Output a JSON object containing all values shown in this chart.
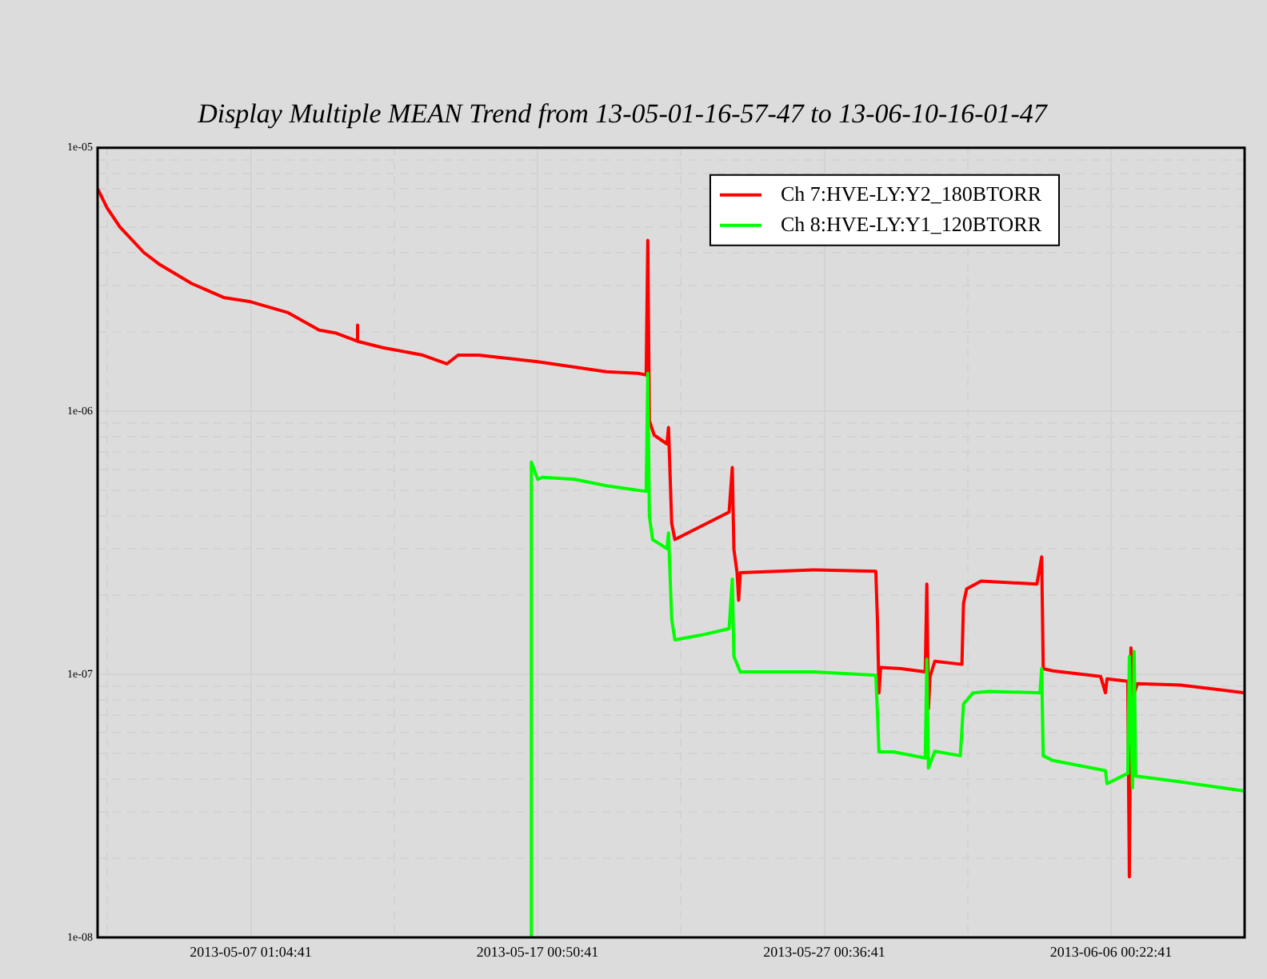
{
  "chart_data": {
    "type": "line",
    "title": "Display Multiple MEAN Trend from 13-05-01-16-57-47 to 13-06-10-16-01-47",
    "series": [
      {
        "name": "Ch 7:HVE-LY:Y2_180BTORR",
        "color": "#ff0000",
        "x": [
          "2013-05-01T16:58",
          "2013-05-02T01:00",
          "2013-05-02T11:40",
          "2013-05-03T07:40",
          "2013-05-03T21:00",
          "2013-05-04T23:40",
          "2013-05-06T02:20",
          "2013-05-07T01:00",
          "2013-05-08T07:40",
          "2013-05-09T10:20",
          "2013-05-09T23:40",
          "2013-05-10T18:20",
          "2013-05-10T18:20",
          "2013-05-10T18:20",
          "2013-05-11T15:40",
          "2013-05-13T01:00",
          "2013-05-13T21:00",
          "2013-05-14T06:20",
          "2013-05-14T23:40",
          "2013-05-17T01:00",
          "2013-05-19T10:20",
          "2013-05-20T13:00",
          "2013-05-20T19:40",
          "2013-05-20T21:00",
          "2013-05-20T22:20",
          "2013-05-21T02:20",
          "2013-05-21T13:00",
          "2013-05-21T14:20",
          "2013-05-21T17:00",
          "2013-05-21T19:40",
          "2013-05-23T17:00",
          "2013-05-23T19:40",
          "2013-05-23T21:00",
          "2013-05-23T23:40",
          "2013-05-24T01:00",
          "2013-05-24T02:20",
          "2013-05-26T15:40",
          "2013-05-28T19:40",
          "2013-05-28T21:00",
          "2013-05-28T22:20",
          "2013-05-28T23:40",
          "2013-05-29T17:00",
          "2013-05-30T13:00",
          "2013-05-30T14:20",
          "2013-05-30T15:40",
          "2013-05-30T17:00",
          "2013-05-30T21:00",
          "2013-05-31T19:40",
          "2013-05-31T21:00",
          "2013-05-31T23:40",
          "2013-06-01T11:40",
          "2013-06-03T10:20",
          "2013-06-03T14:20",
          "2013-06-03T15:40",
          "2013-06-03T23:40",
          "2013-06-05T15:40",
          "2013-06-05T19:40",
          "2013-06-05T21:00",
          "2013-06-06T14:20",
          "2013-06-06T15:40",
          "2013-06-06T17:00",
          "2013-06-06T18:20",
          "2013-06-06T22:20",
          "2013-06-08T10:20",
          "2013-06-10T16:00"
        ],
        "values": [
          7e-06,
          5.9e-06,
          5e-06,
          4e-06,
          3.6e-06,
          3.05e-06,
          2.7e-06,
          2.6e-06,
          2.37e-06,
          2.03e-06,
          1.98e-06,
          1.84e-06,
          2.12e-06,
          1.84e-06,
          1.74e-06,
          1.63e-06,
          1.51e-06,
          1.63e-06,
          1.63e-06,
          1.54e-06,
          1.41e-06,
          1.39e-06,
          1.37e-06,
          4.45e-06,
          9.2e-07,
          8.1e-07,
          7.5e-07,
          8.65e-07,
          3.74e-07,
          3.25e-07,
          4.13e-07,
          6.1e-07,
          2.99e-07,
          2.43e-07,
          1.91e-07,
          2.43e-07,
          2.49e-07,
          2.46e-07,
          1.62e-07,
          8.5e-08,
          1.06e-07,
          1.05e-07,
          1.02e-07,
          2.2e-07,
          7.4e-08,
          9.8e-08,
          1.12e-07,
          1.09e-07,
          1.86e-07,
          2.11e-07,
          2.26e-07,
          2.2e-07,
          2.79e-07,
          1.05e-07,
          1.03e-07,
          9.8e-08,
          8.5e-08,
          9.6e-08,
          9.4e-08,
          1.7e-08,
          1.26e-07,
          8.1e-08,
          9.2e-08,
          9.1e-08,
          8.5e-08
        ]
      },
      {
        "name": "Ch 8:HVE-LY:Y1_120BTORR",
        "color": "#00ff00",
        "x": [
          "2013-05-16T19:40",
          "2013-05-16T19:40",
          "2013-05-17T01:00",
          "2013-05-17T05:00",
          "2013-05-18T07:40",
          "2013-05-19T10:20",
          "2013-05-20T19:40",
          "2013-05-20T21:00",
          "2013-05-20T22:20",
          "2013-05-21T01:00",
          "2013-05-21T13:00",
          "2013-05-21T14:20",
          "2013-05-21T17:00",
          "2013-05-21T19:40",
          "2013-05-22T18:20",
          "2013-05-23T17:00",
          "2013-05-23T19:40",
          "2013-05-23T21:00",
          "2013-05-24T02:20",
          "2013-05-26T15:40",
          "2013-05-28T19:40",
          "2013-05-28T21:00",
          "2013-05-28T22:20",
          "2013-05-29T10:20",
          "2013-05-30T13:00",
          "2013-05-30T14:20",
          "2013-05-30T15:40",
          "2013-05-30T21:00",
          "2013-05-31T18:20",
          "2013-05-31T21:00",
          "2013-06-01T05:00",
          "2013-06-01T18:20",
          "2013-06-03T13:00",
          "2013-06-03T14:20",
          "2013-06-03T15:40",
          "2013-06-03T23:40",
          "2013-06-05T19:40",
          "2013-06-05T21:00",
          "2013-06-06T14:20",
          "2013-06-06T15:40",
          "2013-06-06T18:20",
          "2013-06-06T19:40",
          "2013-06-06T21:00",
          "2013-06-08T10:20",
          "2013-06-10T16:00"
        ],
        "values": [
          1e-08,
          6.4e-07,
          5.5e-07,
          5.6e-07,
          5.5e-07,
          5.2e-07,
          4.95e-07,
          1.39e-06,
          4e-07,
          3.25e-07,
          3e-07,
          3.44e-07,
          1.62e-07,
          1.35e-07,
          1.41e-07,
          1.49e-07,
          2.3e-07,
          1.17e-07,
          1.02e-07,
          1.02e-07,
          9.9e-08,
          7.2e-08,
          5.07e-08,
          5.07e-08,
          4.8e-08,
          1.14e-07,
          4.4e-08,
          5.1e-08,
          4.9e-08,
          7.7e-08,
          8.5e-08,
          8.6e-08,
          8.5e-08,
          1.05e-07,
          4.9e-08,
          4.7e-08,
          4.3e-08,
          3.84e-08,
          4.2e-08,
          1.17e-07,
          3.7e-08,
          1.22e-07,
          4.1e-08,
          3.9e-08,
          3.6e-08
        ]
      }
    ],
    "xlim": [
      "2013-05-01T16:57:47",
      "2013-06-10T16:01:47"
    ],
    "xticks": [
      {
        "value": "2013-05-02T01:11:41",
        "label": null
      },
      {
        "value": "2013-05-07T01:04:41",
        "label": "2013-05-07 01:04:41"
      },
      {
        "value": "2013-05-12T00:57:41",
        "label": null
      },
      {
        "value": "2013-05-17T00:50:41",
        "label": "2013-05-17 00:50:41"
      },
      {
        "value": "2013-05-22T00:43:41",
        "label": null
      },
      {
        "value": "2013-05-27T00:36:41",
        "label": "2013-05-27 00:36:41"
      },
      {
        "value": "2013-06-01T00:29:41",
        "label": null
      },
      {
        "value": "2013-06-06T00:22:41",
        "label": "2013-06-06 00:22:41"
      }
    ],
    "log": "y",
    "ylim": [
      1e-08,
      1e-05
    ],
    "yticks": [
      {
        "value": 1e-08,
        "label": "1e-08"
      },
      {
        "value": 2e-08,
        "label": null
      },
      {
        "value": 3e-08,
        "label": null
      },
      {
        "value": 4e-08,
        "label": null
      },
      {
        "value": 5e-08,
        "label": null
      },
      {
        "value": 6e-08,
        "label": null
      },
      {
        "value": 7e-08,
        "label": null
      },
      {
        "value": 8e-08,
        "label": null
      },
      {
        "value": 9e-08,
        "label": null
      },
      {
        "value": 1e-07,
        "label": "1e-07"
      },
      {
        "value": 2e-07,
        "label": null
      },
      {
        "value": 3e-07,
        "label": null
      },
      {
        "value": 4e-07,
        "label": null
      },
      {
        "value": 5e-07,
        "label": null
      },
      {
        "value": 6e-07,
        "label": null
      },
      {
        "value": 7e-07,
        "label": null
      },
      {
        "value": 8e-07,
        "label": null
      },
      {
        "value": 9e-07,
        "label": null
      },
      {
        "value": 1e-06,
        "label": "1e-06"
      },
      {
        "value": 2e-06,
        "label": null
      },
      {
        "value": 3e-06,
        "label": null
      },
      {
        "value": 4e-06,
        "label": null
      },
      {
        "value": 5e-06,
        "label": null
      },
      {
        "value": 6e-06,
        "label": null
      },
      {
        "value": 7e-06,
        "label": null
      },
      {
        "value": 8e-06,
        "label": null
      },
      {
        "value": 9e-06,
        "label": null
      },
      {
        "value": 1e-05,
        "label": "1e-05"
      }
    ],
    "grid": true,
    "legend": "top right",
    "marker": "none",
    "line_style": "solid"
  }
}
